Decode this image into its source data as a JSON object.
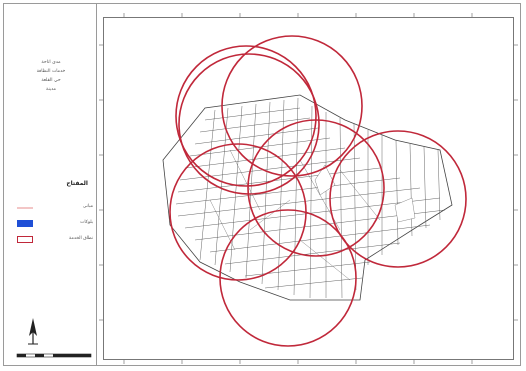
{
  "map": {
    "title_lines": [
      "مدى اتاحة",
      "خدمات النظافة",
      "حي القلعة",
      "مدينة"
    ],
    "legend_title": "المفتاح",
    "legend_items": [
      {
        "label": "مبانى",
        "color": "#f3c6c6",
        "icon": "pink-line-symbol"
      },
      {
        "label": "بلوكات",
        "color": "#1f4fd6",
        "icon": "blue-fill-symbol"
      },
      {
        "label": "نطاق الخدمة",
        "color": "#c0283a",
        "icon": "red-outline-symbol"
      }
    ],
    "coverage_circle_color": "#c0283a",
    "north_arrow": "north-arrow-icon",
    "top_ticks": [
      "",
      "",
      "",
      "",
      "",
      "",
      ""
    ],
    "bottom_ticks": [
      "",
      "",
      "",
      "",
      "",
      "",
      ""
    ]
  }
}
